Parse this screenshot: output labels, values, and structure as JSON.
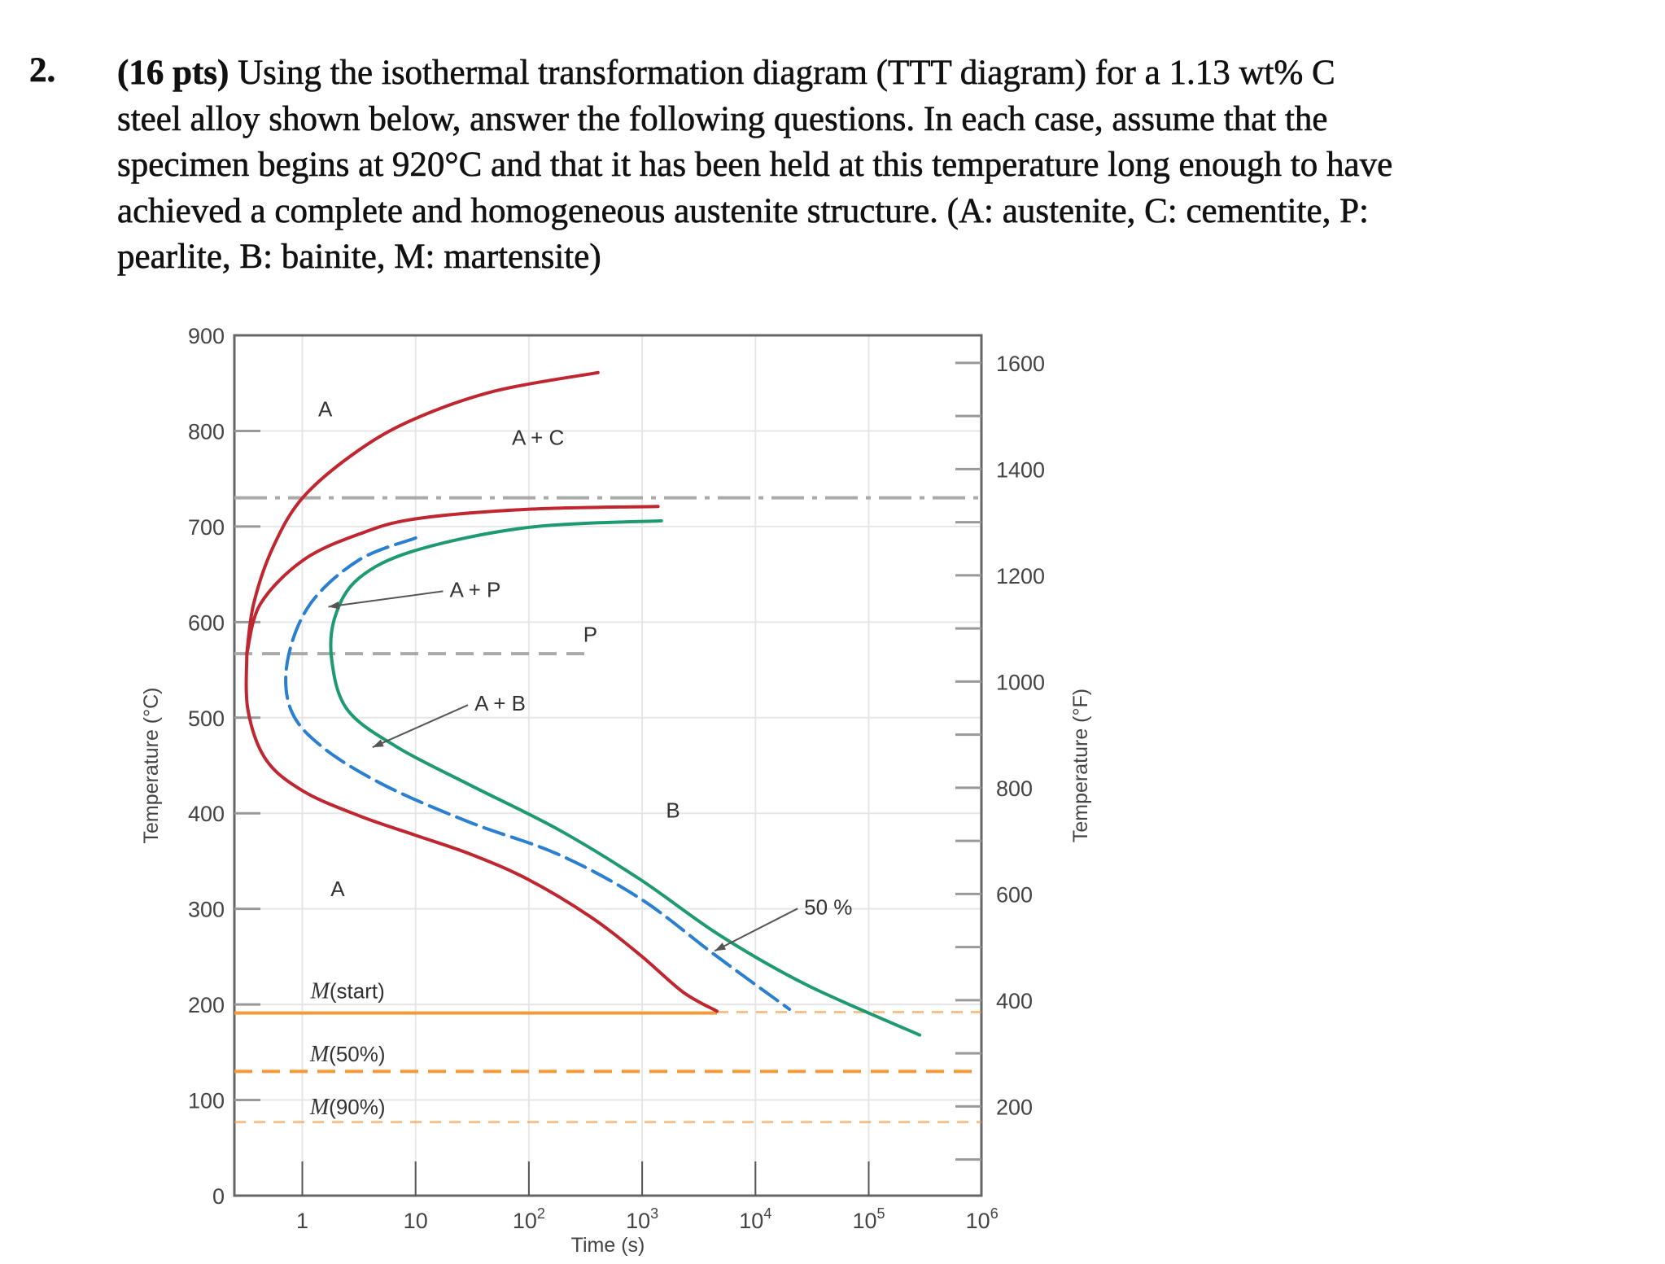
{
  "question": {
    "number": "2.",
    "points": "(16 pts)",
    "lines": [
      " Using the isothermal transformation diagram (TTT diagram) for a 1.13 wt% C",
      "steel alloy shown below, answer the following questions. In each case, assume that the",
      "specimen begins at 920°C and that it has been held at this temperature long enough to have",
      "achieved a complete and homogeneous austenite structure.  (A: austenite, C: cementite, P:",
      "pearlite, B: bainite, M: martensite)"
    ]
  },
  "chart_data": {
    "type": "line",
    "xlabel": "Time (s)",
    "ylabel": "Temperature (°C)",
    "ylabel_right": "Temperature (°F)",
    "xscale": "log",
    "xlim_log10": [
      -0.6,
      6
    ],
    "ylim": [
      0,
      900
    ],
    "grid": true,
    "x_ticks": [
      {
        "value": 1,
        "base": "1",
        "exp": ""
      },
      {
        "value": 10,
        "base": "10",
        "exp": ""
      },
      {
        "value": 100,
        "base": "10",
        "exp": "2"
      },
      {
        "value": 1000,
        "base": "10",
        "exp": "3"
      },
      {
        "value": 10000,
        "base": "10",
        "exp": "4"
      },
      {
        "value": 100000,
        "base": "10",
        "exp": "5"
      },
      {
        "value": 1000000,
        "base": "10",
        "exp": "6"
      }
    ],
    "y_ticks": [
      0,
      100,
      200,
      300,
      400,
      500,
      600,
      700,
      800,
      900
    ],
    "y_right_ticks": [
      200,
      400,
      600,
      800,
      1000,
      1200,
      1400,
      1600
    ],
    "colors": {
      "start": "#c0262f",
      "fifty": "#2b7fd0",
      "finish": "#1e9a73",
      "martensite": "#f39a3c",
      "reference": "#aaaaaa"
    },
    "curves": [
      {
        "id": "proeutectoid-start",
        "color_key": "start",
        "style": "solid",
        "points": [
          [
            -0.49,
            567
          ],
          [
            -0.43,
            619
          ],
          [
            -0.26,
            678
          ],
          [
            0.01,
            731
          ],
          [
            0.5,
            780
          ],
          [
            1.0,
            813
          ],
          [
            1.71,
            842
          ],
          [
            2.61,
            861
          ]
        ]
      },
      {
        "id": "pearlite-start",
        "color_key": "start",
        "style": "solid",
        "points": [
          [
            -0.49,
            567
          ],
          [
            -0.37,
            619
          ],
          [
            0.01,
            665
          ],
          [
            0.5,
            692
          ],
          [
            1.0,
            708
          ],
          [
            1.99,
            718
          ],
          [
            3.14,
            721
          ]
        ]
      },
      {
        "id": "bainite-start",
        "color_key": "start",
        "style": "solid",
        "points": [
          [
            -0.49,
            567
          ],
          [
            -0.48,
            508
          ],
          [
            -0.32,
            456
          ],
          [
            0.01,
            423
          ],
          [
            0.51,
            397
          ],
          [
            1.0,
            377
          ],
          [
            1.49,
            357
          ],
          [
            1.99,
            331
          ],
          [
            2.54,
            292
          ],
          [
            2.98,
            252
          ],
          [
            3.36,
            213
          ],
          [
            3.66,
            193
          ]
        ]
      },
      {
        "id": "fifty-percent",
        "color_key": "fifty",
        "style": "dashed",
        "points": [
          [
            1.0,
            688
          ],
          [
            0.5,
            665
          ],
          [
            0.07,
            619
          ],
          [
            -0.13,
            560
          ],
          [
            -0.1,
            508
          ],
          [
            0.18,
            469
          ],
          [
            0.73,
            429
          ],
          [
            1.49,
            390
          ],
          [
            2.26,
            357
          ],
          [
            2.98,
            311
          ],
          [
            3.64,
            252
          ],
          [
            4.3,
            195
          ]
        ]
      },
      {
        "id": "finish",
        "color_key": "finish",
        "style": "solid",
        "points": [
          [
            3.17,
            706
          ],
          [
            1.99,
            699
          ],
          [
            1.0,
            675
          ],
          [
            0.5,
            646
          ],
          [
            0.29,
            606
          ],
          [
            0.26,
            560
          ],
          [
            0.4,
            508
          ],
          [
            0.84,
            469
          ],
          [
            1.49,
            429
          ],
          [
            2.26,
            383
          ],
          [
            2.98,
            331
          ],
          [
            3.69,
            272
          ],
          [
            4.46,
            220
          ],
          [
            5.45,
            168
          ]
        ]
      }
    ],
    "reference_lines": [
      {
        "id": "eutectoid",
        "T": 730,
        "style": "dashdot",
        "color_key": "reference",
        "from_log10": -0.6,
        "to_log10": 6
      },
      {
        "id": "pearlite-bainite-boundary",
        "T": 567,
        "style": "dashed",
        "color_key": "reference",
        "from_log10": -0.6,
        "to_log10": 2.53
      },
      {
        "id": "m-start",
        "T": 191,
        "style": "solid",
        "color_key": "martensite",
        "from_log10": -0.6,
        "to_log10": 3.66
      },
      {
        "id": "m-start-ext",
        "T": 192,
        "style": "lightdash",
        "color_key": "martensite",
        "from_log10": 3.66,
        "to_log10": 6
      },
      {
        "id": "m-50",
        "T": 130,
        "style": "dashed",
        "color_key": "martensite",
        "from_log10": -0.6,
        "to_log10": 6
      },
      {
        "id": "m-90",
        "T": 77,
        "style": "lightdash",
        "color_key": "martensite",
        "from_log10": -0.6,
        "to_log10": 6
      }
    ],
    "annotations": [
      {
        "text": "A",
        "at": [
          0.14,
          823
        ]
      },
      {
        "text": "A + C",
        "at": [
          1.85,
          793
        ]
      },
      {
        "text": "A + P",
        "at": [
          1.3,
          634
        ],
        "arrow_to": [
          0.23,
          616
        ]
      },
      {
        "text": "P",
        "at": [
          2.48,
          587
        ]
      },
      {
        "text": "A + B",
        "at": [
          1.52,
          515
        ],
        "arrow_to": [
          0.62,
          469
        ]
      },
      {
        "text": "B",
        "at": [
          3.21,
          403
        ]
      },
      {
        "text": "A",
        "at": [
          0.25,
          321
        ]
      },
      {
        "text": "50 %",
        "at": [
          4.43,
          302
        ],
        "arrow_to": [
          3.64,
          256
        ]
      },
      {
        "text": "(start)",
        "italic_prefix": "M",
        "at": [
          0.4,
          214
        ]
      },
      {
        "text": "(50%)",
        "italic_prefix": "M",
        "at": [
          0.4,
          148
        ]
      },
      {
        "text": "(90%)",
        "italic_prefix": "M",
        "at": [
          0.4,
          93
        ]
      }
    ]
  }
}
